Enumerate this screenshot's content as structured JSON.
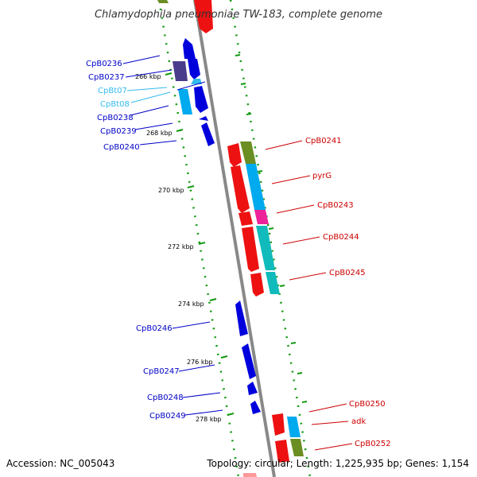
{
  "title": "Chlamydophila pneumoniae TW-183, complete genome",
  "footer": {
    "accession": "Accession: NC_005043",
    "summary": "Topology: circular; Length: 1,225,935 bp; Genes: 1,154"
  },
  "colors": {
    "backbone": "#888888",
    "reverse_label": "#0000c8",
    "trna_label": "#33bbee",
    "forward_label": "#cc0000",
    "tick": "#119911"
  },
  "ticks": [
    "266 kbp",
    "268 kbp",
    "270 kbp",
    "272 kbp",
    "274 kbp",
    "276 kbp",
    "278 kbp"
  ],
  "labels": {
    "left": [
      "CpB0236",
      "CpB0237",
      "CpBt07",
      "CpBt08",
      "CpB0238",
      "CpB0239",
      "CpB0240",
      "CpB0246",
      "CpB0247",
      "CpB0248",
      "CpB0249"
    ],
    "right": [
      "CpB0241",
      "pyrG",
      "CpB0243",
      "CpB0244",
      "CpB0245",
      "CpB0250",
      "adk",
      "CpB0252"
    ]
  }
}
